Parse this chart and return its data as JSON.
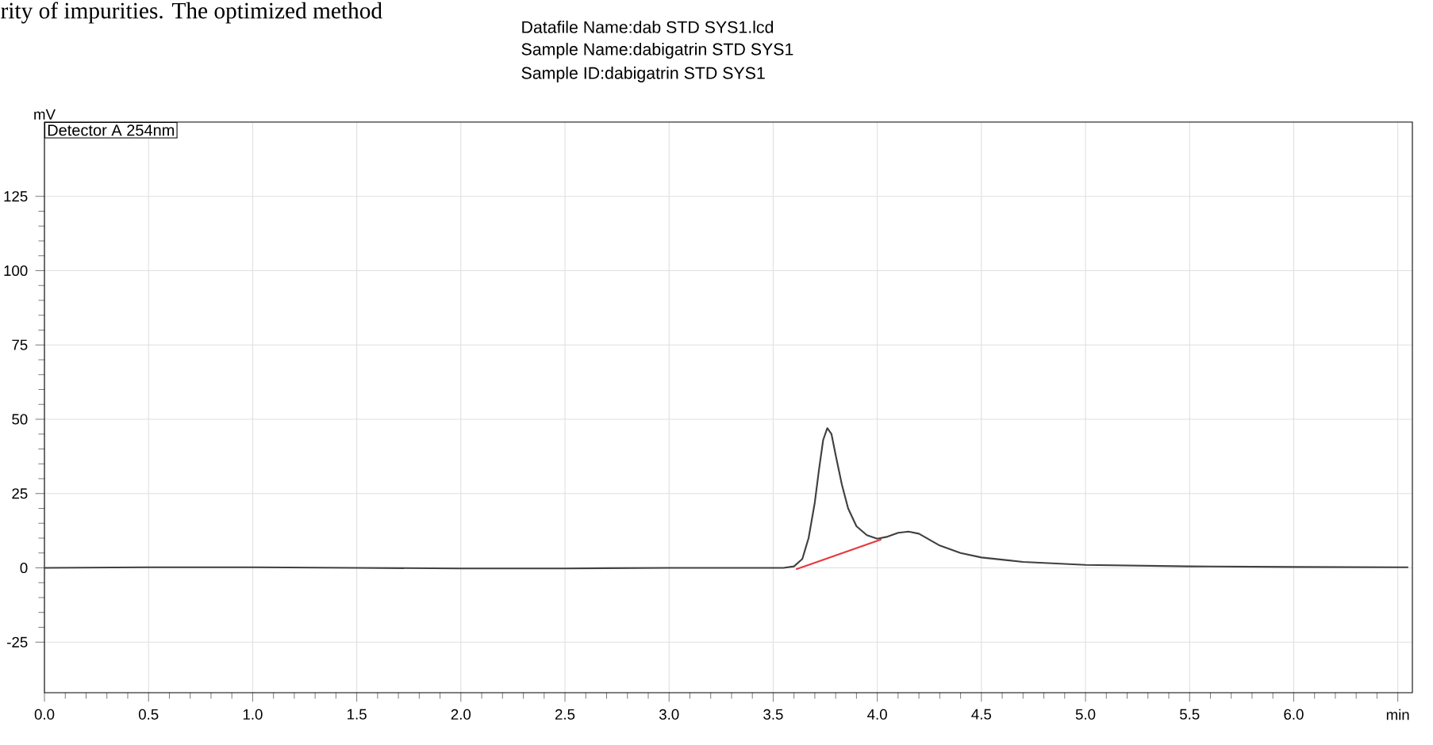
{
  "chart_data": {
    "type": "line",
    "ylabel": "mV",
    "annotations": [
      "rity of impurities. The optimized method",
      "Datafile Name:dab STD SYS1.lcd",
      "Sample Name:dabigatrin STD SYS1",
      "Sample ID:dabigatrin STD SYS1",
      "Detector A 254nm"
    ],
    "series": [
      {
        "color": "#404040",
        "x": [
          0,
          0.5,
          1.0,
          1.5,
          2.0,
          2.5,
          3.0,
          3.4,
          3.55,
          3.6,
          3.64,
          3.67,
          3.7,
          3.72,
          3.74,
          3.76,
          3.78,
          3.8,
          3.83,
          3.86,
          3.9,
          3.95,
          4.0,
          4.05,
          4.1,
          4.15,
          4.2,
          4.25,
          4.3,
          4.4,
          4.5,
          4.7,
          5.0,
          5.5,
          6.0,
          6.5,
          6.55
        ],
        "values": [
          0,
          0.2,
          0.2,
          0,
          -0.2,
          -0.2,
          0,
          0,
          0,
          0.5,
          3,
          10,
          22,
          33,
          43,
          47,
          45,
          38,
          28,
          20,
          14,
          11,
          9.8,
          10.5,
          11.8,
          12.2,
          11.5,
          9.5,
          7.5,
          5,
          3.5,
          2,
          1,
          0.5,
          0.3,
          0.2,
          0.2
        ]
      },
      {
        "color": "#e8383b",
        "x": [
          3.61,
          4.02
        ],
        "values": [
          -0.5,
          9.6
        ]
      }
    ],
    "xlim": [
      0,
      6.57
    ],
    "ylim": [
      -42,
      150
    ],
    "xticks": [
      {
        "value": 0,
        "label": "0.0"
      },
      {
        "value": 0.5,
        "label": "0.5"
      },
      {
        "value": 1,
        "label": "1.0"
      },
      {
        "value": 1.5,
        "label": "1.5"
      },
      {
        "value": 2,
        "label": "2.0"
      },
      {
        "value": 2.5,
        "label": "2.5"
      },
      {
        "value": 3,
        "label": "3.0"
      },
      {
        "value": 3.5,
        "label": "3.5"
      },
      {
        "value": 4,
        "label": "4.0"
      },
      {
        "value": 4.5,
        "label": "4.5"
      },
      {
        "value": 5,
        "label": "5.0"
      },
      {
        "value": 5.5,
        "label": "5.5"
      },
      {
        "value": 6,
        "label": "6.0"
      },
      {
        "value": 6.5,
        "label": "min"
      }
    ],
    "yticks": [
      -25,
      0,
      25,
      50,
      75,
      100,
      125
    ],
    "grid": true
  }
}
